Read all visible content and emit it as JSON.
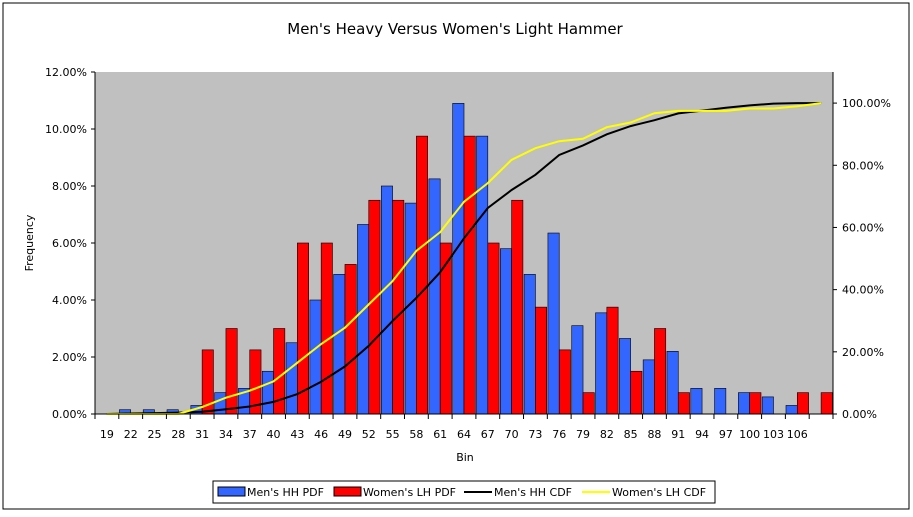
{
  "chart_data": {
    "type": "bar",
    "title": "Men's Heavy Versus Women's Light Hammer",
    "xlabel": "Bin",
    "ylabel": "Frequency",
    "ylim": [
      0,
      12
    ],
    "y2lim": [
      0,
      110
    ],
    "yticks": [
      "0.00%",
      "2.00%",
      "4.00%",
      "6.00%",
      "8.00%",
      "10.00%",
      "12.00%"
    ],
    "y2ticks": [
      "0.00%",
      "20.00%",
      "40.00%",
      "60.00%",
      "80.00%",
      "100.00%"
    ],
    "categories": [
      "19",
      "22",
      "25",
      "28",
      "31",
      "34",
      "37",
      "40",
      "43",
      "46",
      "49",
      "52",
      "55",
      "58",
      "61",
      "64",
      "67",
      "70",
      "73",
      "76",
      "79",
      "82",
      "85",
      "88",
      "91",
      "94",
      "97",
      "100",
      "103",
      "106",
      ""
    ],
    "legend_position": "bottom",
    "series": [
      {
        "name": "Men's HH PDF",
        "type": "bar",
        "axis": "left",
        "color": "#3366ff",
        "values": [
          0,
          0.15,
          0.15,
          0.15,
          0.3,
          0.75,
          0.9,
          1.5,
          2.5,
          4.0,
          4.9,
          6.65,
          8.0,
          7.4,
          8.25,
          10.9,
          9.75,
          5.8,
          4.9,
          6.35,
          3.1,
          3.55,
          2.65,
          1.9,
          2.2,
          0.9,
          0.9,
          0.75,
          0.6,
          0.3,
          0
        ]
      },
      {
        "name": "Women's LH PDF",
        "type": "bar",
        "axis": "left",
        "color": "#ff0000",
        "values": [
          0,
          0,
          0,
          0,
          2.25,
          3.0,
          2.25,
          3.0,
          6.0,
          6.0,
          5.25,
          7.5,
          7.5,
          9.75,
          6.0,
          9.75,
          6.0,
          7.5,
          3.75,
          2.25,
          0.75,
          3.75,
          1.5,
          3.0,
          0.75,
          0,
          0,
          0.75,
          0,
          0.75,
          0.75
        ]
      },
      {
        "name": "Men's HH CDF",
        "type": "line",
        "axis": "right",
        "color": "#000000",
        "values": [
          0,
          0.15,
          0.3,
          0.45,
          0.75,
          1.5,
          2.4,
          3.9,
          6.4,
          10.4,
          15.3,
          21.95,
          29.95,
          37.35,
          45.6,
          56.5,
          66.25,
          72.05,
          76.95,
          83.3,
          86.4,
          89.95,
          92.6,
          94.5,
          96.7,
          97.6,
          98.5,
          99.25,
          99.85,
          100,
          100
        ]
      },
      {
        "name": "Women's LH CDF",
        "type": "line",
        "axis": "right",
        "color": "#ffff00",
        "values": [
          0,
          0,
          0,
          0,
          2.25,
          5.25,
          7.5,
          10.5,
          16.5,
          22.5,
          27.75,
          35.25,
          42.75,
          52.5,
          58.5,
          68.25,
          74.25,
          81.75,
          85.5,
          87.75,
          88.5,
          92.25,
          93.75,
          96.75,
          97.5,
          97.5,
          97.5,
          98.25,
          98.25,
          99,
          100
        ]
      }
    ]
  }
}
